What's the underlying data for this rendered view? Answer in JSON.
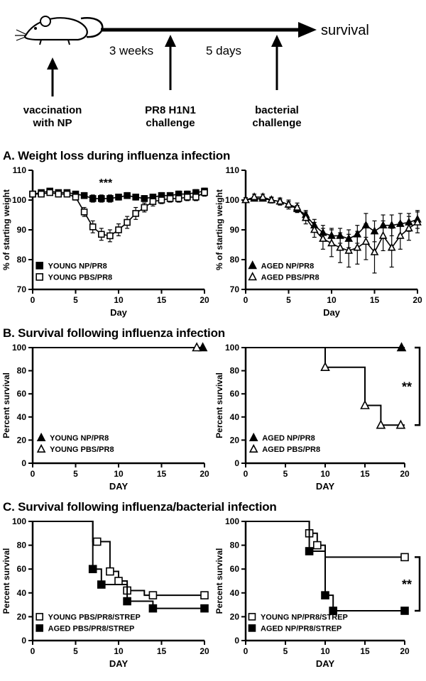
{
  "schematic": {
    "survival": "survival",
    "interval1": "3 weeks",
    "interval2": "5 days",
    "event1_line1": "vaccination",
    "event1_line2": "with NP",
    "event2_line1": "PR8 H1N1",
    "event2_line2": "challenge",
    "event3_line1": "bacterial",
    "event3_line2": "challenge"
  },
  "panels": [
    {
      "title": "A. Weight loss during influenza infection"
    },
    {
      "title": "B. Survival following influenza infection"
    },
    {
      "title": "C. Survival following influenza/bacterial infection"
    }
  ],
  "colors": {
    "ink": "#000000",
    "background": "#ffffff"
  },
  "chart_data": [
    {
      "id": "young-weight-loss",
      "type": "line",
      "xlabel": "Day",
      "ylabel": "% of starting weight",
      "xlim": [
        0,
        20
      ],
      "ylim": [
        70,
        110
      ],
      "xticks": [
        0,
        5,
        10,
        15,
        20
      ],
      "yticks": [
        70,
        80,
        90,
        100,
        110
      ],
      "annotation": {
        "text": "***",
        "x": 8.5,
        "y": 104.5
      },
      "legend": {
        "fx": 0.04,
        "fy": 0.8
      },
      "series": [
        {
          "name": "YOUNG NP/PR8",
          "marker": "sf",
          "x": [
            0,
            1,
            2,
            3,
            4,
            5,
            6,
            7,
            8,
            9,
            10,
            11,
            12,
            13,
            14,
            15,
            16,
            17,
            18,
            19,
            20
          ],
          "y": [
            102,
            102.5,
            103,
            102.5,
            102.5,
            102,
            101.5,
            100.5,
            100.5,
            100.5,
            101,
            101.5,
            101,
            100.5,
            101,
            101.5,
            101.5,
            102,
            102,
            102.5,
            103
          ],
          "err": [
            0.8,
            0.8,
            0.8,
            0.8,
            0.8,
            0.8,
            1,
            1.2,
            1.2,
            1.2,
            1,
            1,
            1,
            1,
            1,
            1,
            1,
            1,
            1,
            1,
            1
          ]
        },
        {
          "name": "YOUNG PBS/PR8",
          "marker": "so",
          "x": [
            0,
            1,
            2,
            3,
            4,
            5,
            6,
            7,
            8,
            9,
            10,
            11,
            12,
            13,
            14,
            15,
            16,
            17,
            18,
            19,
            20
          ],
          "y": [
            102,
            102,
            102.5,
            102,
            102,
            101,
            96,
            91,
            88.5,
            88,
            90,
            92.5,
            95.5,
            97.5,
            99.5,
            100,
            100.5,
            100.5,
            101,
            101,
            102.5
          ],
          "err": [
            0.8,
            0.8,
            0.8,
            0.8,
            0.8,
            1,
            1.5,
            2,
            2,
            2,
            2,
            2,
            2,
            1.5,
            1.5,
            1.2,
            1.2,
            1.2,
            1.2,
            1.2,
            1.2
          ]
        }
      ]
    },
    {
      "id": "aged-weight-loss",
      "type": "line",
      "xlabel": "Day",
      "ylabel": "% of starting weight",
      "xlim": [
        0,
        20
      ],
      "ylim": [
        70,
        110
      ],
      "xticks": [
        0,
        5,
        10,
        15,
        20
      ],
      "yticks": [
        70,
        80,
        90,
        100,
        110
      ],
      "legend": {
        "fx": 0.04,
        "fy": 0.8
      },
      "series": [
        {
          "name": "AGED NP/PR8",
          "marker": "tf",
          "x": [
            0,
            1,
            2,
            3,
            4,
            5,
            6,
            7,
            8,
            9,
            10,
            11,
            12,
            13,
            14,
            15,
            16,
            17,
            18,
            19,
            20
          ],
          "y": [
            100,
            100.5,
            100.5,
            100,
            99.5,
            98.5,
            97,
            95,
            91.5,
            89,
            88,
            88,
            87,
            88.5,
            91.5,
            89.5,
            91.5,
            91.5,
            92,
            92.5,
            93.5
          ],
          "err": [
            0.8,
            0.8,
            0.8,
            0.8,
            0.8,
            1,
            1.2,
            1.5,
            2,
            2.5,
            2.5,
            2.5,
            3,
            3,
            4,
            3.5,
            3.5,
            3.5,
            3.5,
            3,
            3
          ]
        },
        {
          "name": "AGED PBS/PR8",
          "marker": "to",
          "x": [
            0,
            1,
            2,
            3,
            4,
            5,
            6,
            7,
            8,
            9,
            10,
            11,
            12,
            13,
            14,
            15,
            16,
            17,
            18,
            19,
            20
          ],
          "y": [
            100,
            101,
            101,
            100,
            99.5,
            98.5,
            97.5,
            94,
            90,
            87,
            85.5,
            84,
            83,
            84,
            86,
            82.5,
            88,
            84,
            88,
            90.5,
            92.5
          ],
          "err": [
            0.8,
            1,
            1,
            1,
            1.2,
            1.5,
            1.5,
            2,
            2.5,
            3.5,
            4.5,
            5,
            5.5,
            5.5,
            6,
            7,
            5,
            6.5,
            4.5,
            4,
            3.5
          ]
        }
      ]
    },
    {
      "id": "young-survival-influenza",
      "type": "step",
      "xlabel": "DAY",
      "ylabel": "Percent survival",
      "xlim": [
        0,
        20
      ],
      "ylim": [
        0,
        100
      ],
      "xticks": [
        0,
        5,
        10,
        15,
        20
      ],
      "yticks": [
        0,
        20,
        40,
        60,
        80,
        100
      ],
      "legend": {
        "fx": 0.05,
        "fy": 0.78
      },
      "series": [
        {
          "name": "YOUNG NP/PR8",
          "marker": "tf",
          "steps": [
            [
              0,
              100
            ],
            [
              20,
              100
            ]
          ],
          "pts": [
            [
              19.8,
              100
            ]
          ]
        },
        {
          "name": "YOUNG PBS/PR8",
          "marker": "to",
          "steps": [
            [
              0,
              100
            ],
            [
              20,
              100
            ]
          ],
          "pts": [
            [
              19.1,
              100
            ]
          ]
        }
      ]
    },
    {
      "id": "aged-survival-influenza",
      "type": "step",
      "xlabel": "DAY",
      "ylabel": "Percent survival",
      "xlim": [
        0,
        20
      ],
      "ylim": [
        0,
        100
      ],
      "xticks": [
        0,
        5,
        10,
        15,
        20
      ],
      "yticks": [
        0,
        20,
        40,
        60,
        80,
        100
      ],
      "legend": {
        "fx": 0.05,
        "fy": 0.78
      },
      "bracket": {
        "label": "**",
        "y1": 100,
        "y2": 33
      },
      "series": [
        {
          "name": "AGED NP/PR8",
          "marker": "tf",
          "steps": [
            [
              0,
              100
            ],
            [
              20,
              100
            ]
          ],
          "pts": [
            [
              19.6,
              100
            ]
          ]
        },
        {
          "name": "AGED PBS/PR8",
          "marker": "to",
          "steps": [
            [
              0,
              100
            ],
            [
              10,
              100
            ],
            [
              10,
              83
            ],
            [
              15,
              83
            ],
            [
              15,
              50
            ],
            [
              17,
              50
            ],
            [
              17,
              33
            ],
            [
              20,
              33
            ]
          ],
          "pts": [
            [
              10,
              83
            ],
            [
              15,
              50
            ],
            [
              17,
              33
            ],
            [
              19.5,
              33
            ]
          ]
        }
      ]
    },
    {
      "id": "survival-pbs-strep",
      "type": "step",
      "xlabel": "DAY",
      "ylabel": "Percent survival",
      "xlim": [
        0,
        20
      ],
      "ylim": [
        0,
        100
      ],
      "xticks": [
        0,
        5,
        10,
        15,
        20
      ],
      "yticks": [
        0,
        20,
        40,
        60,
        80,
        100
      ],
      "legend": {
        "fx": 0.04,
        "fy": 0.8
      },
      "series": [
        {
          "name": "YOUNG PBS/PR8/STREP",
          "marker": "so",
          "steps": [
            [
              0,
              100
            ],
            [
              7,
              100
            ],
            [
              7,
              83
            ],
            [
              9,
              83
            ],
            [
              9,
              58
            ],
            [
              10,
              58
            ],
            [
              10,
              50
            ],
            [
              11,
              50
            ],
            [
              11,
              42
            ],
            [
              13,
              42
            ],
            [
              13,
              38
            ],
            [
              20,
              38
            ]
          ],
          "pts": [
            [
              7.5,
              83
            ],
            [
              9,
              58
            ],
            [
              10,
              50
            ],
            [
              11,
              42
            ],
            [
              14,
              38
            ],
            [
              20,
              38
            ]
          ]
        },
        {
          "name": "AGED PBS/PR8/STREP",
          "marker": "sf",
          "steps": [
            [
              0,
              100
            ],
            [
              7,
              100
            ],
            [
              7,
              60
            ],
            [
              8,
              60
            ],
            [
              8,
              47
            ],
            [
              11,
              47
            ],
            [
              11,
              33
            ],
            [
              14,
              33
            ],
            [
              14,
              27
            ],
            [
              20,
              27
            ]
          ],
          "pts": [
            [
              7,
              60
            ],
            [
              8,
              47
            ],
            [
              11,
              33
            ],
            [
              14,
              27
            ],
            [
              20,
              27
            ]
          ]
        }
      ]
    },
    {
      "id": "survival-np-strep",
      "type": "step",
      "xlabel": "DAY",
      "ylabel": "Percent survival",
      "xlim": [
        0,
        20
      ],
      "ylim": [
        0,
        100
      ],
      "xticks": [
        0,
        5,
        10,
        15,
        20
      ],
      "yticks": [
        0,
        20,
        40,
        60,
        80,
        100
      ],
      "legend": {
        "fx": 0.04,
        "fy": 0.8
      },
      "bracket": {
        "label": "**",
        "y1": 70,
        "y2": 25
      },
      "series": [
        {
          "name": "YOUNG NP/PR8/STREP",
          "marker": "so",
          "steps": [
            [
              0,
              100
            ],
            [
              8,
              100
            ],
            [
              8,
              90
            ],
            [
              9,
              90
            ],
            [
              9,
              80
            ],
            [
              10,
              80
            ],
            [
              10,
              70
            ],
            [
              20,
              70
            ]
          ],
          "pts": [
            [
              8,
              90
            ],
            [
              9,
              80
            ],
            [
              20,
              70
            ]
          ]
        },
        {
          "name": "AGED NP/PR8/STREP",
          "marker": "sf",
          "steps": [
            [
              0,
              100
            ],
            [
              8,
              100
            ],
            [
              8,
              75
            ],
            [
              10,
              75
            ],
            [
              10,
              38
            ],
            [
              11,
              38
            ],
            [
              11,
              25
            ],
            [
              20,
              25
            ]
          ],
          "pts": [
            [
              8,
              75
            ],
            [
              10,
              38
            ],
            [
              11,
              25
            ],
            [
              20,
              25
            ]
          ]
        }
      ]
    }
  ]
}
